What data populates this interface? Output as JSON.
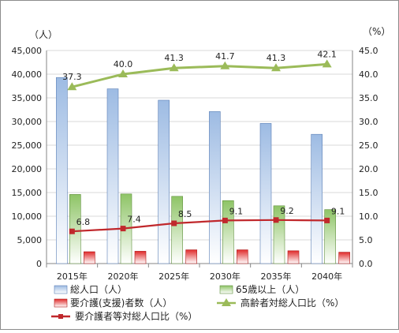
{
  "chart_data": {
    "type": "bar",
    "categories": [
      "2015年",
      "2020年",
      "2025年",
      "2030年",
      "2035年",
      "2040年"
    ],
    "left_unit": "（人）",
    "right_unit": "（%）",
    "ylim_left": [
      0,
      45000
    ],
    "ylim_right": [
      0,
      45.0
    ],
    "left_ticks": [
      "0",
      "5,000",
      "10,000",
      "15,000",
      "20,000",
      "25,000",
      "30,000",
      "35,000",
      "40,000",
      "45,000"
    ],
    "right_ticks": [
      "0.0",
      "5.0",
      "10.0",
      "15.0",
      "20.0",
      "25.0",
      "30.0",
      "35.0",
      "40.0",
      "45.0"
    ],
    "grid": true,
    "legend_position": "bottom",
    "bar_series": [
      {
        "name": "総人口（人）",
        "values": [
          39300,
          36900,
          34500,
          32100,
          29600,
          27300
        ],
        "color_top": "#9dbbe3",
        "color_bottom": "#ffffff",
        "stroke": "#5b7fb6"
      },
      {
        "name": "65歳以上（人）",
        "values": [
          14600,
          14700,
          14200,
          13300,
          12200,
          11400
        ],
        "color_top": "#8ec466",
        "color_bottom": "#ffffff",
        "stroke": "#5f8f3c"
      },
      {
        "name": "要介護(支援)者数（人）",
        "values": [
          2500,
          2600,
          2900,
          2900,
          2700,
          2400
        ],
        "color_top": "#e02a2a",
        "color_bottom": "#ffffff",
        "stroke": "#b01a1a"
      }
    ],
    "line_series": [
      {
        "name": "高齢者対総人口比（%）",
        "values": [
          37.3,
          40.0,
          41.3,
          41.7,
          41.3,
          42.1
        ],
        "labels": [
          "37.3",
          "40.0",
          "41.3",
          "41.7",
          "41.3",
          "42.1"
        ],
        "color": "#9bbb59",
        "marker": "triangle"
      },
      {
        "name": "要介護者等対総人口比（%）",
        "values": [
          6.8,
          7.4,
          8.5,
          9.1,
          9.2,
          9.1
        ],
        "labels": [
          "6.8",
          "7.4",
          "8.5",
          "9.1",
          "9.2",
          "9.1"
        ],
        "color": "#c0282c",
        "marker": "square"
      }
    ]
  }
}
